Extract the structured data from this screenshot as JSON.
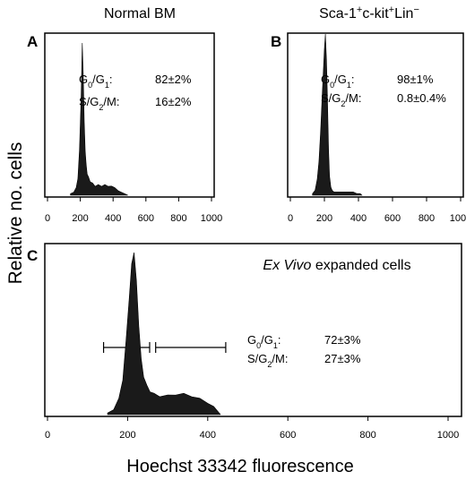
{
  "figure": {
    "shared_ylabel": "Relative no. cells",
    "shared_xlabel": "Hoechst 33342 fluorescence"
  },
  "chart_data": [
    {
      "id": "A",
      "type": "histogram",
      "panel_letter": "A",
      "title": "Normal BM",
      "xlim": [
        0,
        1000
      ],
      "xticks": [
        "0",
        "200",
        "400",
        "600",
        "800",
        "1000"
      ],
      "stats": [
        {
          "label_html": "G<tspan baseline-shift=\"sub\" font-size=\"9\">0</tspan>/G<tspan baseline-shift=\"sub\" font-size=\"9\">1</tspan>:",
          "value": "82±2%"
        },
        {
          "label_html": "S/G<tspan baseline-shift=\"sub\" font-size=\"9\">2</tspan>/M:",
          "value": "16±2%"
        }
      ],
      "hist_x": [
        140,
        160,
        175,
        185,
        195,
        205,
        212,
        218,
        224,
        230,
        236,
        242,
        250,
        260,
        275,
        290,
        310,
        330,
        350,
        370,
        390,
        410,
        430,
        450,
        470,
        490
      ],
      "hist_y": [
        0.01,
        0.02,
        0.05,
        0.12,
        0.3,
        0.65,
        1.0,
        0.8,
        0.48,
        0.3,
        0.2,
        0.15,
        0.12,
        0.1,
        0.08,
        0.07,
        0.07,
        0.07,
        0.07,
        0.07,
        0.06,
        0.05,
        0.03,
        0.02,
        0.01,
        0
      ]
    },
    {
      "id": "B",
      "type": "histogram",
      "panel_letter": "B",
      "title_html": "Sca-1<tspan baseline-shift=\"super\" font-size=\"11\">+</tspan>c-kit<tspan baseline-shift=\"super\" font-size=\"11\">+</tspan>Lin<tspan baseline-shift=\"super\" font-size=\"11\">−</tspan>",
      "xlim": [
        0,
        1000
      ],
      "xticks": [
        "0",
        "200",
        "400",
        "600",
        "800",
        "1000"
      ],
      "stats": [
        {
          "label_html": "G<tspan baseline-shift=\"sub\" font-size=\"9\">0</tspan>/G<tspan baseline-shift=\"sub\" font-size=\"9\">1</tspan>:",
          "value": "98±1%"
        },
        {
          "label_html": "S/G<tspan baseline-shift=\"sub\" font-size=\"9\">2</tspan>/M:",
          "value": "0.8±0.4%"
        }
      ],
      "hist_x": [
        130,
        145,
        158,
        168,
        178,
        186,
        194,
        200,
        206,
        212,
        218,
        224,
        230,
        238,
        246,
        256,
        270,
        290,
        310,
        330,
        350,
        370,
        390,
        410,
        420
      ],
      "hist_y": [
        0.01,
        0.03,
        0.1,
        0.22,
        0.4,
        0.6,
        0.78,
        0.92,
        1.0,
        0.85,
        0.6,
        0.3,
        0.12,
        0.05,
        0.03,
        0.02,
        0.02,
        0.02,
        0.02,
        0.02,
        0.02,
        0.02,
        0.01,
        0.01,
        0
      ]
    },
    {
      "id": "C",
      "type": "histogram",
      "panel_letter": "C",
      "title_html": "<tspan font-style=\"italic\">Ex Vivo</tspan> expanded cells",
      "xlim": [
        0,
        1000
      ],
      "xticks": [
        "0",
        "200",
        "400",
        "600",
        "800",
        "1000"
      ],
      "stats": [
        {
          "label_html": "G<tspan baseline-shift=\"sub\" font-size=\"9\">0</tspan>/G<tspan baseline-shift=\"sub\" font-size=\"9\">1</tspan>:",
          "value": "72±3%"
        },
        {
          "label_html": "S/G<tspan baseline-shift=\"sub\" font-size=\"9\">2</tspan>/M:",
          "value": "27±3%"
        }
      ],
      "gates": [
        {
          "from": 140,
          "to": 255
        },
        {
          "from": 270,
          "to": 445
        }
      ],
      "hist_x": [
        150,
        165,
        178,
        188,
        196,
        204,
        210,
        216,
        222,
        228,
        234,
        240,
        248,
        256,
        266,
        280,
        300,
        320,
        340,
        360,
        380,
        400,
        415,
        425,
        432
      ],
      "hist_y": [
        0.01,
        0.03,
        0.1,
        0.22,
        0.45,
        0.72,
        0.92,
        1.0,
        0.82,
        0.55,
        0.34,
        0.24,
        0.18,
        0.15,
        0.13,
        0.12,
        0.12,
        0.13,
        0.13,
        0.12,
        0.1,
        0.08,
        0.05,
        0.02,
        0
      ]
    }
  ]
}
